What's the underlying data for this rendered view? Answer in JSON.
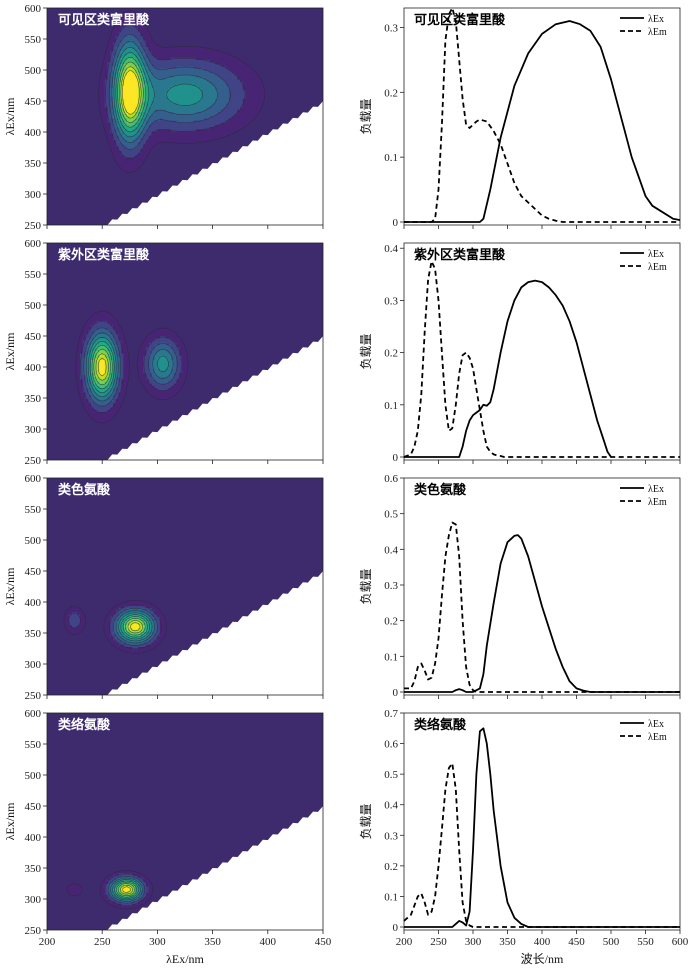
{
  "figure": {
    "left_xlabel": "λEx/nm",
    "left_ylabel": "λEx/nm",
    "right_xlabel": "波长/nm",
    "right_ylabel": "负载量"
  },
  "chart_data": [
    {
      "type": "heatmap",
      "title": "可见区类富里酸",
      "xlim": [
        200,
        450
      ],
      "ylim": [
        250,
        600
      ],
      "xticks": [
        200,
        250,
        300,
        350,
        400,
        450
      ],
      "yticks": [
        250,
        300,
        350,
        400,
        450,
        500,
        550,
        600
      ],
      "peaks": [
        {
          "x": 275,
          "y": 465,
          "sx": 10,
          "sy": 55,
          "amp": 1.0
        },
        {
          "x": 325,
          "y": 460,
          "sx": 35,
          "sy": 38,
          "amp": 0.5
        }
      ]
    },
    {
      "type": "line",
      "title": "可见区类富里酸",
      "xlim": [
        200,
        600
      ],
      "ylim": [
        0,
        0.33
      ],
      "xticks": [
        200,
        250,
        300,
        350,
        400,
        450,
        500,
        550,
        600
      ],
      "yticks": [
        0,
        0.1,
        0.2,
        0.3
      ],
      "series": [
        {
          "name": "λEx",
          "style": "solid",
          "x": [
            200,
            250,
            300,
            310,
            315,
            325,
            340,
            360,
            380,
            400,
            420,
            440,
            455,
            470,
            485,
            500,
            510,
            520,
            530,
            540,
            550,
            560,
            575,
            590,
            600
          ],
          "y": [
            0,
            0,
            0,
            0,
            0.005,
            0.05,
            0.13,
            0.21,
            0.26,
            0.29,
            0.305,
            0.31,
            0.305,
            0.295,
            0.27,
            0.22,
            0.18,
            0.14,
            0.1,
            0.07,
            0.04,
            0.025,
            0.015,
            0.005,
            0.003
          ]
        },
        {
          "name": "λEm",
          "style": "dashed",
          "x": [
            200,
            240,
            245,
            250,
            255,
            260,
            265,
            270,
            275,
            280,
            285,
            290,
            295,
            300,
            305,
            310,
            320,
            330,
            340,
            350,
            360,
            370,
            380,
            390,
            400,
            410,
            420,
            430,
            450,
            500,
            600
          ],
          "y": [
            0,
            0,
            0.005,
            0.05,
            0.15,
            0.28,
            0.32,
            0.33,
            0.31,
            0.25,
            0.19,
            0.15,
            0.145,
            0.15,
            0.155,
            0.158,
            0.155,
            0.14,
            0.12,
            0.09,
            0.06,
            0.04,
            0.03,
            0.02,
            0.01,
            0.005,
            0.002,
            0,
            0,
            0,
            0
          ]
        }
      ]
    },
    {
      "type": "heatmap",
      "title": "紫外区类富里酸",
      "xlim": [
        200,
        450
      ],
      "ylim": [
        250,
        600
      ],
      "xticks": [
        200,
        250,
        300,
        350,
        400,
        450
      ],
      "yticks": [
        250,
        300,
        350,
        400,
        450,
        500,
        550,
        600
      ],
      "peaks": [
        {
          "x": 250,
          "y": 400,
          "sx": 10,
          "sy": 38,
          "amp": 1.0
        },
        {
          "x": 305,
          "y": 405,
          "sx": 11,
          "sy": 28,
          "amp": 0.5
        }
      ]
    },
    {
      "type": "line",
      "title": "紫外区类富里酸",
      "xlim": [
        200,
        600
      ],
      "ylim": [
        0,
        0.41
      ],
      "xticks": [
        200,
        250,
        300,
        350,
        400,
        450,
        500,
        550,
        600
      ],
      "yticks": [
        0,
        0.1,
        0.2,
        0.3,
        0.4
      ],
      "series": [
        {
          "name": "λEx",
          "style": "solid",
          "x": [
            200,
            280,
            285,
            290,
            295,
            300,
            305,
            310,
            315,
            320,
            325,
            330,
            340,
            350,
            360,
            370,
            380,
            390,
            400,
            410,
            420,
            430,
            440,
            450,
            460,
            470,
            480,
            490,
            495,
            500
          ],
          "y": [
            0,
            0,
            0.02,
            0.05,
            0.07,
            0.08,
            0.085,
            0.09,
            0.1,
            0.098,
            0.105,
            0.13,
            0.2,
            0.26,
            0.3,
            0.325,
            0.335,
            0.338,
            0.335,
            0.325,
            0.31,
            0.29,
            0.26,
            0.22,
            0.17,
            0.12,
            0.07,
            0.03,
            0.01,
            0
          ]
        },
        {
          "name": "λEm",
          "style": "dashed",
          "x": [
            200,
            210,
            215,
            220,
            225,
            230,
            235,
            240,
            245,
            250,
            255,
            260,
            265,
            270,
            275,
            280,
            285,
            290,
            295,
            300,
            305,
            310,
            315,
            320,
            325,
            330,
            335,
            340,
            345,
            350,
            600
          ],
          "y": [
            0,
            0.005,
            0.02,
            0.05,
            0.12,
            0.24,
            0.34,
            0.375,
            0.36,
            0.3,
            0.2,
            0.1,
            0.05,
            0.055,
            0.1,
            0.16,
            0.195,
            0.2,
            0.19,
            0.17,
            0.13,
            0.09,
            0.05,
            0.02,
            0.01,
            0.005,
            0.003,
            0.002,
            0,
            0,
            0
          ]
        }
      ]
    },
    {
      "type": "heatmap",
      "title": "类色氨酸",
      "xlim": [
        200,
        450
      ],
      "ylim": [
        250,
        600
      ],
      "xticks": [
        200,
        250,
        300,
        350,
        400,
        450
      ],
      "yticks": [
        250,
        300,
        350,
        400,
        450,
        500,
        550,
        600
      ],
      "peaks": [
        {
          "x": 280,
          "y": 360,
          "sx": 12,
          "sy": 18,
          "amp": 1.0
        },
        {
          "x": 225,
          "y": 370,
          "sx": 6,
          "sy": 14,
          "amp": 0.22
        }
      ]
    },
    {
      "type": "line",
      "title": "类色氨酸",
      "xlim": [
        200,
        600
      ],
      "ylim": [
        0,
        0.6
      ],
      "xticks": [
        200,
        250,
        300,
        350,
        400,
        450,
        500,
        550,
        600
      ],
      "yticks": [
        0,
        0.1,
        0.2,
        0.3,
        0.4,
        0.5,
        0.6
      ],
      "series": [
        {
          "name": "λEx",
          "style": "solid",
          "x": [
            200,
            270,
            275,
            280,
            285,
            290,
            300,
            310,
            315,
            320,
            330,
            340,
            350,
            360,
            365,
            370,
            380,
            390,
            400,
            410,
            420,
            430,
            440,
            450,
            460,
            470,
            600
          ],
          "y": [
            0,
            0,
            0.005,
            0.008,
            0.005,
            0,
            0,
            0.01,
            0.05,
            0.13,
            0.25,
            0.36,
            0.42,
            0.438,
            0.44,
            0.43,
            0.38,
            0.31,
            0.24,
            0.18,
            0.12,
            0.07,
            0.03,
            0.01,
            0.004,
            0,
            0
          ]
        },
        {
          "name": "λEm",
          "style": "dashed",
          "x": [
            200,
            210,
            215,
            220,
            225,
            230,
            235,
            240,
            245,
            250,
            255,
            260,
            265,
            270,
            275,
            280,
            285,
            290,
            295,
            300,
            305,
            310,
            600
          ],
          "y": [
            0.01,
            0.01,
            0.03,
            0.07,
            0.08,
            0.06,
            0.035,
            0.04,
            0.08,
            0.15,
            0.27,
            0.38,
            0.44,
            0.475,
            0.47,
            0.38,
            0.2,
            0.07,
            0.02,
            0.005,
            0,
            0,
            0
          ]
        }
      ]
    },
    {
      "type": "heatmap",
      "title": "类络氨酸",
      "xlim": [
        200,
        450
      ],
      "ylim": [
        250,
        600
      ],
      "xticks": [
        200,
        250,
        300,
        350,
        400,
        450
      ],
      "yticks": [
        250,
        300,
        350,
        400,
        450,
        500,
        550,
        600
      ],
      "peaks": [
        {
          "x": 272,
          "y": 315,
          "sx": 10,
          "sy": 13,
          "amp": 1.0
        },
        {
          "x": 225,
          "y": 315,
          "sx": 5,
          "sy": 7,
          "amp": 0.15
        }
      ]
    },
    {
      "type": "line",
      "title": "类络氨酸",
      "xlim": [
        200,
        600
      ],
      "ylim": [
        0,
        0.7
      ],
      "xticks": [
        200,
        250,
        300,
        350,
        400,
        450,
        500,
        550,
        600
      ],
      "yticks": [
        0,
        0.1,
        0.2,
        0.3,
        0.4,
        0.5,
        0.6,
        0.7
      ],
      "series": [
        {
          "name": "λEx",
          "style": "solid",
          "x": [
            200,
            270,
            275,
            280,
            285,
            290,
            295,
            300,
            305,
            310,
            315,
            320,
            325,
            330,
            340,
            350,
            360,
            370,
            380,
            600
          ],
          "y": [
            0,
            0,
            0.01,
            0.02,
            0.015,
            0.005,
            0.05,
            0.25,
            0.5,
            0.64,
            0.65,
            0.6,
            0.5,
            0.38,
            0.2,
            0.08,
            0.03,
            0.01,
            0,
            0
          ]
        },
        {
          "name": "λEm",
          "style": "dashed",
          "x": [
            200,
            210,
            215,
            220,
            225,
            230,
            235,
            240,
            245,
            250,
            255,
            260,
            265,
            270,
            275,
            280,
            285,
            290,
            295,
            300,
            600
          ],
          "y": [
            0.02,
            0.04,
            0.07,
            0.1,
            0.11,
            0.08,
            0.04,
            0.05,
            0.1,
            0.2,
            0.32,
            0.45,
            0.52,
            0.535,
            0.45,
            0.25,
            0.08,
            0.02,
            0.005,
            0,
            0
          ]
        }
      ]
    }
  ]
}
